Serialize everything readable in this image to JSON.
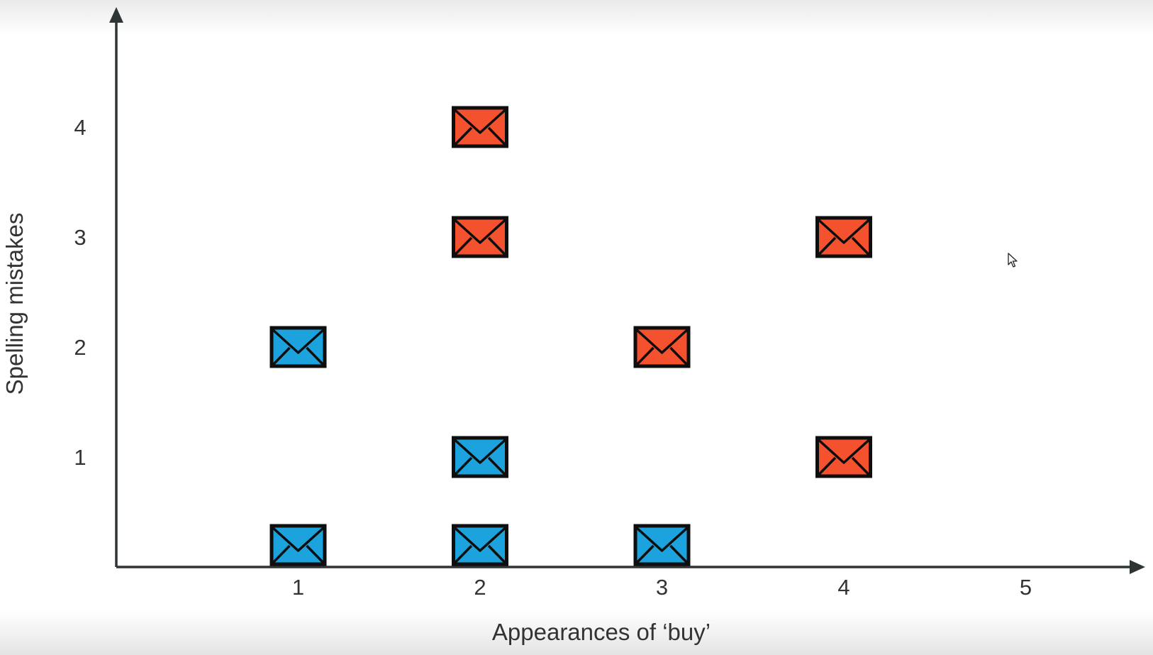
{
  "chart_data": {
    "type": "scatter",
    "title": "",
    "xlabel": "Appearances of ‘buy’",
    "ylabel": "Spelling mistakes",
    "xlim": [
      0,
      5.7
    ],
    "ylim": [
      0,
      4.7
    ],
    "xticks": [
      "1",
      "2",
      "3",
      "4",
      "5"
    ],
    "yticks": [
      "1",
      "2",
      "3",
      "4"
    ],
    "grid": false,
    "legend": "none",
    "series": [
      {
        "color": "#1ca3de",
        "marker": "envelope-icon",
        "points": [
          {
            "x": 1,
            "y": 2
          },
          {
            "x": 2,
            "y": 1
          },
          {
            "x": 1,
            "y": 0.2
          },
          {
            "x": 2,
            "y": 0.2
          },
          {
            "x": 3,
            "y": 0.2
          }
        ]
      },
      {
        "color": "#f4512f",
        "marker": "envelope-icon",
        "points": [
          {
            "x": 2,
            "y": 4
          },
          {
            "x": 2,
            "y": 3
          },
          {
            "x": 4,
            "y": 3
          },
          {
            "x": 3,
            "y": 2
          },
          {
            "x": 4,
            "y": 1
          }
        ]
      }
    ],
    "axis_color": "#2f3437"
  }
}
